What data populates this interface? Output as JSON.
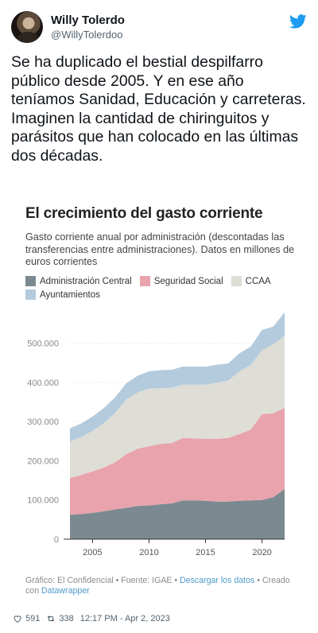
{
  "tweet": {
    "display_name": "Willy Tolerdo",
    "handle": "@WillyTolerdoo",
    "text": "Se ha duplicado el bestial despilfarro público desde 2005. Y en ese año teníamos Sanidad, Educación y carreteras. Imaginen la cantidad de chiringuitos y parásitos que han colocado en las últimas dos décadas.",
    "likes": "591",
    "retweets": "338",
    "timestamp": "12:17 PM - Apr 2, 2023",
    "bird_icon": "twitter-bird-icon",
    "like_icon": "heart-icon",
    "retweet_icon": "retweet-icon"
  },
  "colors": {
    "brand": "#1d9bf0",
    "administracion_central": "#7b8a90",
    "seguridad_social": "#e9a3ad",
    "ccaa": "#deded6",
    "ayuntamientos": "#b4cbdd"
  },
  "chart_data": {
    "type": "area",
    "stacked": true,
    "title": "El crecimiento del gasto corriente",
    "subtitle": "Gasto corriente anual por administración (descontadas las transferencias entre administraciones). Datos en millones de euros corrientes",
    "x": [
      2003,
      2004,
      2005,
      2006,
      2007,
      2008,
      2009,
      2010,
      2011,
      2012,
      2013,
      2014,
      2015,
      2016,
      2017,
      2018,
      2019,
      2020,
      2021,
      2022
    ],
    "series": [
      {
        "name": "Administración Central",
        "values": [
          62000,
          64000,
          67000,
          71000,
          76000,
          80000,
          85000,
          86000,
          89000,
          91000,
          99000,
          99000,
          98000,
          96000,
          96000,
          98000,
          99000,
          100000,
          107000,
          128000
        ]
      },
      {
        "name": "Seguridad Social",
        "values": [
          94000,
          100000,
          106000,
          112000,
          120000,
          137000,
          146000,
          151000,
          154000,
          154000,
          159000,
          158000,
          158000,
          160000,
          162000,
          170000,
          180000,
          219000,
          214000,
          207000
        ]
      },
      {
        "name": "CCAA",
        "values": [
          93000,
          96000,
          103000,
          113000,
          126000,
          140000,
          143000,
          147000,
          142000,
          141000,
          136000,
          137000,
          138000,
          143000,
          146000,
          160000,
          165000,
          163000,
          176000,
          183000
        ]
      },
      {
        "name": "Ayuntamientos",
        "values": [
          34000,
          35000,
          37000,
          38000,
          40000,
          41000,
          43000,
          44000,
          46000,
          46000,
          46000,
          46000,
          46000,
          46000,
          44000,
          46000,
          47000,
          52000,
          45000,
          61000
        ]
      }
    ],
    "ylim": [
      0,
      580000
    ],
    "yticks": [
      0,
      100000,
      200000,
      300000,
      400000,
      500000
    ],
    "ytick_labels": [
      "0",
      "100.000",
      "200.000",
      "300.000",
      "400.000",
      "500.000"
    ],
    "xticks": [
      2005,
      2010,
      2015,
      2020
    ],
    "xtick_labels": [
      "2005",
      "2010",
      "2015",
      "2020"
    ],
    "grid": true,
    "legend_position": "top-left",
    "footnote": {
      "prefix": "Gráfico: El Confidencial • Fuente: IGAE • ",
      "link1": "Descargar los datos",
      "middle": " • Creado con ",
      "link2": "Datawrapper"
    }
  }
}
